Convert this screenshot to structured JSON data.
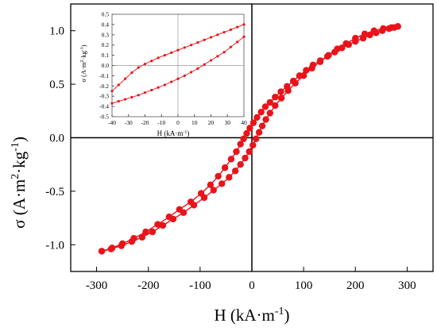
{
  "colors": {
    "series": "#e8141a",
    "axis": "#000000",
    "inset_axis": "#555555",
    "inset_zero": "#999999"
  },
  "chart_data": [
    {
      "type": "line",
      "panel": "main",
      "xlabel_base": "H (kA·m",
      "xlabel_sup": "-1",
      "xlabel_end": ")",
      "ylabel_base": "σ (A·m",
      "ylabel_sup1": "2",
      "ylabel_mid": "·kg",
      "ylabel_sup2": "-1",
      "ylabel_end": ")",
      "xlim": [
        -350,
        350
      ],
      "ylim": [
        -1.25,
        1.25
      ],
      "xticks": [
        -300,
        -200,
        -100,
        0,
        100,
        200,
        300
      ],
      "yticks": [
        -1.0,
        -0.5,
        0.0,
        0.5,
        1.0
      ],
      "xtick_labels": [
        "-300",
        "-200",
        "-100",
        "0",
        "100",
        "200",
        "300"
      ],
      "ytick_labels": [
        "-1.0",
        "-0.5",
        "0.0",
        "0.5",
        "1.0"
      ],
      "grid": false,
      "zero_lines": true,
      "series": [
        {
          "branch": "descending",
          "x": [
            282,
            275,
            265,
            252,
            240,
            228,
            215,
            200,
            187,
            174,
            160,
            146,
            132,
            118,
            105,
            92,
            80,
            68,
            56,
            45,
            35,
            26,
            18,
            10,
            3,
            -4,
            -10,
            -16,
            -22,
            -30,
            -40,
            -52,
            -65,
            -80,
            -98,
            -118,
            -140,
            -160,
            -182,
            -205,
            -228,
            -250,
            -270,
            -290
          ],
          "y": [
            1.04,
            1.03,
            1.02,
            1.0,
            0.98,
            0.96,
            0.93,
            0.9,
            0.87,
            0.84,
            0.8,
            0.76,
            0.72,
            0.68,
            0.63,
            0.58,
            0.53,
            0.48,
            0.43,
            0.38,
            0.33,
            0.29,
            0.24,
            0.19,
            0.14,
            0.09,
            0.04,
            -0.01,
            -0.06,
            -0.13,
            -0.2,
            -0.28,
            -0.36,
            -0.44,
            -0.52,
            -0.6,
            -0.67,
            -0.74,
            -0.81,
            -0.88,
            -0.94,
            -0.99,
            -1.03,
            -1.06
          ]
        },
        {
          "branch": "ascending",
          "x": [
            -290,
            -272,
            -252,
            -232,
            -212,
            -192,
            -172,
            -152,
            -132,
            -112,
            -92,
            -74,
            -58,
            -44,
            -32,
            -22,
            -13,
            -5,
            2,
            8,
            14,
            20,
            27,
            35,
            45,
            57,
            70,
            84,
            100,
            116,
            132,
            148,
            165,
            182,
            200,
            218,
            236,
            254,
            270,
            282
          ],
          "y": [
            -1.06,
            -1.04,
            -1.01,
            -0.97,
            -0.93,
            -0.88,
            -0.82,
            -0.76,
            -0.7,
            -0.63,
            -0.56,
            -0.49,
            -0.43,
            -0.37,
            -0.31,
            -0.25,
            -0.19,
            -0.13,
            -0.07,
            -0.01,
            0.05,
            0.11,
            0.17,
            0.23,
            0.3,
            0.37,
            0.44,
            0.51,
            0.58,
            0.65,
            0.71,
            0.77,
            0.83,
            0.88,
            0.93,
            0.97,
            1.0,
            1.02,
            1.03,
            1.04
          ]
        }
      ]
    },
    {
      "type": "line",
      "panel": "inset",
      "xlabel_base": "H (kA·m",
      "xlabel_sup": "-1",
      "xlabel_end": ")",
      "ylabel_base": "σ (A·m",
      "ylabel_sup1": "2",
      "ylabel_mid": "·kg",
      "ylabel_sup2": "-1",
      "ylabel_end": ")",
      "xlim": [
        -40,
        40
      ],
      "ylim": [
        -0.5,
        0.5
      ],
      "xticks": [
        -40,
        -30,
        -20,
        -10,
        0,
        10,
        20,
        30,
        40
      ],
      "yticks": [
        -0.5,
        -0.4,
        -0.3,
        -0.2,
        -0.1,
        0.0,
        0.1,
        0.2,
        0.3,
        0.4,
        0.5
      ],
      "xtick_labels": [
        "-40",
        "-30",
        "-20",
        "-10",
        "0",
        "10",
        "20",
        "30",
        "40"
      ],
      "ytick_labels": [
        "-0.5",
        "-0.4",
        "-0.3",
        "-0.2",
        "-0.1",
        "0.0",
        "0.1",
        "0.2",
        "0.3",
        "0.4",
        "0.5"
      ],
      "grid": false,
      "zero_lines": true,
      "series": [
        {
          "branch": "descending",
          "x": [
            40,
            36,
            32,
            28,
            24,
            20,
            16,
            12,
            8,
            4,
            0,
            -4,
            -8,
            -12,
            -16,
            -20,
            -24,
            -28,
            -32,
            -36,
            -40
          ],
          "y": [
            0.4,
            0.375,
            0.35,
            0.325,
            0.3,
            0.275,
            0.25,
            0.225,
            0.2,
            0.175,
            0.15,
            0.125,
            0.1,
            0.075,
            0.045,
            0.015,
            -0.02,
            -0.07,
            -0.13,
            -0.19,
            -0.25
          ]
        },
        {
          "branch": "ascending",
          "x": [
            -40,
            -36,
            -32,
            -28,
            -24,
            -20,
            -16,
            -12,
            -8,
            -4,
            0,
            4,
            8,
            12,
            16,
            20,
            24,
            28,
            32,
            36,
            40
          ],
          "y": [
            -0.37,
            -0.35,
            -0.33,
            -0.31,
            -0.29,
            -0.265,
            -0.24,
            -0.215,
            -0.19,
            -0.16,
            -0.13,
            -0.1,
            -0.065,
            -0.03,
            0.01,
            0.05,
            0.09,
            0.13,
            0.18,
            0.23,
            0.28
          ]
        }
      ]
    }
  ]
}
